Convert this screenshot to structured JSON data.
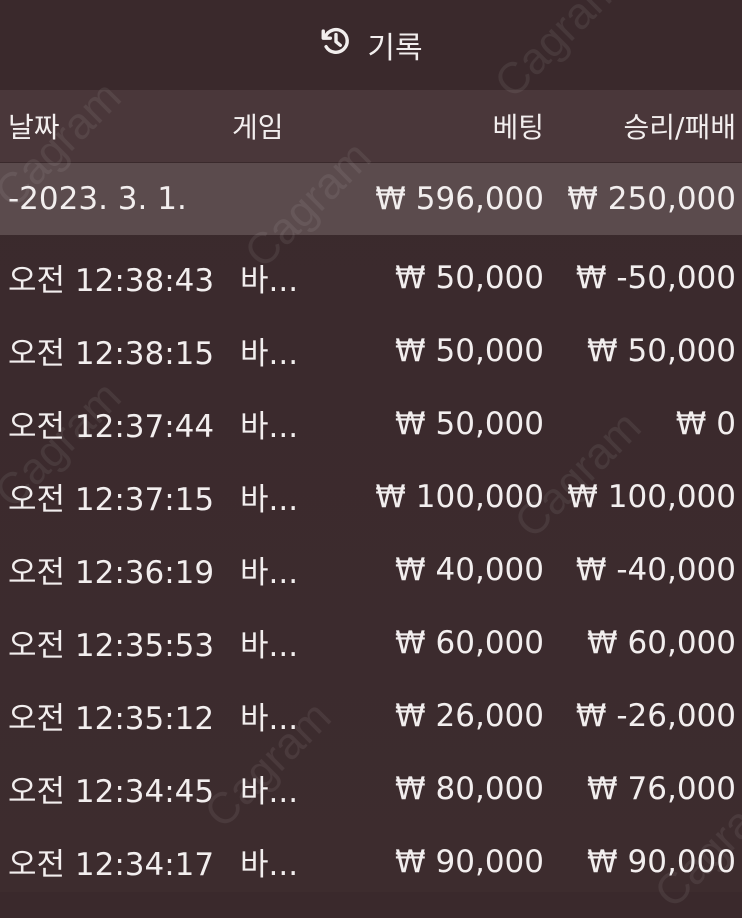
{
  "header": {
    "title": "기록",
    "icon": "history-icon"
  },
  "columns": {
    "date": "날짜",
    "game": "게임",
    "bet": "베팅",
    "result": "승리/패배"
  },
  "summary": {
    "date": "-2023. 3. 1.",
    "bet": "₩ 596,000",
    "result": "₩ 250,000"
  },
  "rows": [
    {
      "time": "오전 12:38:43",
      "game": "바...",
      "bet": "₩ 50,000",
      "result": "₩ -50,000"
    },
    {
      "time": "오전 12:38:15",
      "game": "바...",
      "bet": "₩ 50,000",
      "result": "₩ 50,000"
    },
    {
      "time": "오전 12:37:44",
      "game": "바...",
      "bet": "₩ 50,000",
      "result": "₩ 0"
    },
    {
      "time": "오전 12:37:15",
      "game": "바...",
      "bet": "₩ 100,000",
      "result": "₩ 100,000"
    },
    {
      "time": "오전 12:36:19",
      "game": "바...",
      "bet": "₩ 40,000",
      "result": "₩ -40,000"
    },
    {
      "time": "오전 12:35:53",
      "game": "바...",
      "bet": "₩ 60,000",
      "result": "₩ 60,000"
    },
    {
      "time": "오전 12:35:12",
      "game": "바...",
      "bet": "₩ 26,000",
      "result": "₩ -26,000"
    },
    {
      "time": "오전 12:34:45",
      "game": "바...",
      "bet": "₩ 80,000",
      "result": "₩ 76,000"
    },
    {
      "time": "오전 12:34:17",
      "game": "바...",
      "bet": "₩ 90,000",
      "result": "₩ 90,000"
    }
  ],
  "watermark": "Cagram",
  "colors": {
    "background": "#3a292c",
    "header_row": "#4a373a",
    "summary_row": "#5b4b4d",
    "text": "#f2eeee"
  }
}
